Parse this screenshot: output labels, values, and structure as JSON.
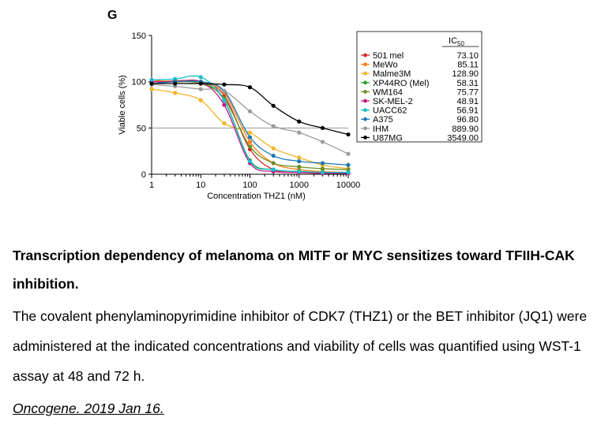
{
  "panel_label": "G",
  "caption": {
    "title": "Transcription dependency of melanoma on MITF or MYC sensitizes toward TFIIH-CAK inhibition.",
    "body": "The covalent phenylaminopyrimidine inhibitor of CDK7 (THZ1) or the BET inhibitor (JQ1) were administered at the indicated concentrations and viability of cells was quantified using WST-1 assay at 48 and 72 h.",
    "reference": "Oncogene. 2019 Jan 16."
  },
  "chart_data": {
    "type": "scatter",
    "xlabel": "Concentration THZ1 (nM)",
    "ylabel": "Viable cells (%)",
    "xscale": "log",
    "xlim": [
      1,
      10000
    ],
    "ylim": [
      0,
      150
    ],
    "xticks": [
      1,
      10,
      100,
      1000,
      10000
    ],
    "xtick_labels": [
      "1",
      "10",
      "100",
      "1000",
      "10000"
    ],
    "yticks": [
      0,
      50,
      100,
      150
    ],
    "ytick_labels": [
      "0",
      "50",
      "100",
      "150"
    ],
    "reference_line_y": 50,
    "grid": false,
    "legend_position": "right",
    "legend_header": "IC",
    "legend_header_sub": "50",
    "x": [
      1,
      3,
      10,
      30,
      100,
      300,
      1000,
      3000,
      10000
    ],
    "series": [
      {
        "name": "501 mel",
        "ic50": "73.10",
        "color": "#d62728",
        "values": [
          100,
          101,
          100,
          85,
          27,
          5,
          2,
          1,
          1
        ]
      },
      {
        "name": "MeWo",
        "ic50": "85.11",
        "color": "#ff7f0e",
        "values": [
          102,
          100,
          100,
          88,
          35,
          12,
          5,
          3,
          2
        ]
      },
      {
        "name": "Malme3M",
        "ic50": "128.90",
        "color": "#f0b429",
        "values": [
          92,
          88,
          80,
          55,
          45,
          28,
          18,
          10,
          6
        ]
      },
      {
        "name": "XP44RO (Mel)",
        "ic50": "58.31",
        "color": "#2ca02c",
        "values": [
          100,
          100,
          100,
          80,
          15,
          5,
          3,
          2,
          2
        ]
      },
      {
        "name": "WM164",
        "ic50": "75.77",
        "color": "#6b8e23",
        "values": [
          100,
          100,
          98,
          82,
          30,
          12,
          8,
          6,
          5
        ]
      },
      {
        "name": "SK-MEL-2",
        "ic50": "48.91",
        "color": "#c71585",
        "values": [
          100,
          100,
          100,
          75,
          12,
          3,
          2,
          1,
          1
        ]
      },
      {
        "name": "UACC62",
        "ic50": "56.91",
        "color": "#17becf",
        "values": [
          102,
          103,
          105,
          80,
          14,
          5,
          3,
          2,
          2
        ]
      },
      {
        "name": "A375",
        "ic50": "96.80",
        "color": "#1f77b4",
        "values": [
          98,
          100,
          100,
          90,
          40,
          20,
          14,
          12,
          10
        ]
      },
      {
        "name": "IHM",
        "ic50": "889.90",
        "color": "#9a9a9a",
        "values": [
          97,
          95,
          92,
          90,
          68,
          52,
          45,
          35,
          22
        ]
      },
      {
        "name": "U87MG",
        "ic50": "3549.00",
        "color": "#000000",
        "values": [
          98,
          98,
          98,
          97,
          94,
          74,
          57,
          50,
          43
        ]
      }
    ]
  }
}
